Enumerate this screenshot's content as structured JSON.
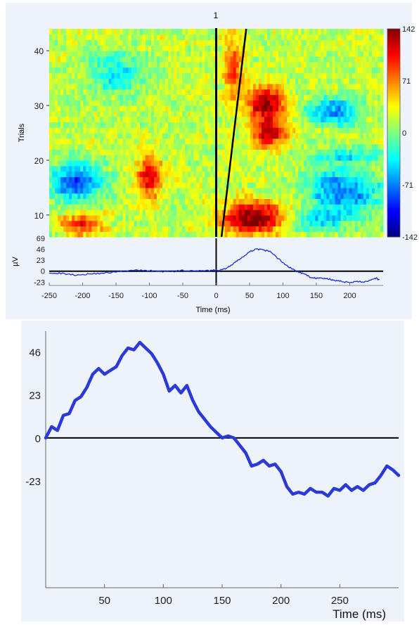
{
  "chart_data": [
    {
      "type": "heatmap",
      "title": "1",
      "ylabel": "Trials",
      "xlim": [
        -250,
        250
      ],
      "ylim": [
        6,
        44
      ],
      "y_ticks": [
        10,
        20,
        30,
        40
      ],
      "colorbar": {
        "range": [
          -142,
          142
        ],
        "ticks": [
          "142",
          "71",
          "0",
          "-71",
          "-142"
        ],
        "colormap": "jet"
      },
      "markers": [
        {
          "kind": "vertical-line",
          "x": 0
        },
        {
          "kind": "sorting-line",
          "points": [
            [
              8,
              6
            ],
            [
              45,
              44
            ]
          ]
        }
      ],
      "blobs": [
        {
          "x": 60,
          "y": 9.5,
          "w": 50,
          "h": 3,
          "v": 135
        },
        {
          "x": 75,
          "y": 30.5,
          "w": 30,
          "h": 3,
          "v": 120
        },
        {
          "x": 80,
          "y": 25,
          "w": 28,
          "h": 2.5,
          "v": 110
        },
        {
          "x": -100,
          "y": 17,
          "w": 18,
          "h": 4,
          "v": 95
        },
        {
          "x": -200,
          "y": 8.5,
          "w": 30,
          "h": 2,
          "v": 85
        },
        {
          "x": 25,
          "y": 37,
          "w": 14,
          "h": 5,
          "v": 75
        },
        {
          "x": -210,
          "y": 16,
          "w": 40,
          "h": 3.5,
          "v": -105
        },
        {
          "x": 190,
          "y": 14.5,
          "w": 55,
          "h": 4,
          "v": -95
        },
        {
          "x": 175,
          "y": 29,
          "w": 38,
          "h": 2.5,
          "v": -85
        },
        {
          "x": -150,
          "y": 36,
          "w": 40,
          "h": 4,
          "v": -55
        },
        {
          "x": 140,
          "y": 9,
          "w": 60,
          "h": 2,
          "v": -60
        },
        {
          "x": 200,
          "y": 21,
          "w": 60,
          "h": 1.5,
          "v": -50
        }
      ]
    },
    {
      "type": "line",
      "ylabel": "µV",
      "xlabel": "Time (ms)",
      "xlim": [
        -250,
        250
      ],
      "ylim": [
        -30,
        69
      ],
      "y_ticks": [
        69,
        46,
        23,
        0,
        -23
      ],
      "x_ticks": [
        -250,
        -200,
        -150,
        -100,
        -50,
        0,
        50,
        100,
        150,
        200
      ],
      "series": [
        {
          "x": [
            -250,
            -230,
            -210,
            -190,
            -170,
            -150,
            -130,
            -110,
            -90,
            -70,
            -50,
            -30,
            -10,
            0,
            10,
            20,
            30,
            40,
            50,
            60,
            70,
            80,
            90,
            100,
            110,
            120,
            130,
            140,
            150,
            160,
            170,
            180,
            190,
            200,
            210,
            220,
            230,
            240,
            245
          ],
          "y": [
            -3,
            -5,
            -8,
            -6,
            -4,
            -2,
            1,
            2,
            0,
            -1,
            1,
            0,
            1,
            2,
            3,
            10,
            20,
            30,
            40,
            47,
            44,
            42,
            30,
            18,
            8,
            0,
            -5,
            -12,
            -15,
            -15,
            -17,
            -20,
            -22,
            -24,
            -21,
            -23,
            -20,
            -15,
            -20
          ]
        }
      ]
    },
    {
      "type": "line",
      "xlabel": "Time (ms)",
      "xlim": [
        0,
        300
      ],
      "ylim": [
        -80,
        57
      ],
      "y_ticks": [
        46,
        23,
        0,
        -23
      ],
      "x_ticks": [
        50,
        100,
        150,
        200,
        250
      ],
      "series": [
        {
          "x": [
            0,
            5,
            10,
            15,
            20,
            25,
            30,
            35,
            40,
            45,
            50,
            55,
            60,
            65,
            70,
            75,
            80,
            85,
            90,
            95,
            100,
            105,
            110,
            115,
            120,
            125,
            130,
            135,
            140,
            145,
            150,
            155,
            160,
            165,
            170,
            175,
            180,
            185,
            190,
            195,
            200,
            205,
            210,
            215,
            220,
            225,
            230,
            235,
            240,
            245,
            250,
            255,
            260,
            265,
            270,
            275,
            280,
            285,
            290,
            295,
            300
          ],
          "y": [
            0,
            6,
            4,
            12,
            13,
            20,
            22,
            27,
            34,
            37,
            34,
            36,
            38,
            44,
            48,
            47,
            51,
            48,
            45,
            40,
            34,
            25,
            28,
            24,
            28,
            20,
            14,
            10,
            6,
            3,
            0,
            1,
            0,
            -4,
            -8,
            -15,
            -14,
            -12,
            -15,
            -14,
            -18,
            -26,
            -30,
            -29,
            -30,
            -27,
            -29,
            -29,
            -31,
            -27,
            -28,
            -25,
            -28,
            -26,
            -28,
            -25,
            -24,
            -20,
            -15,
            -17,
            -20
          ]
        }
      ]
    }
  ]
}
